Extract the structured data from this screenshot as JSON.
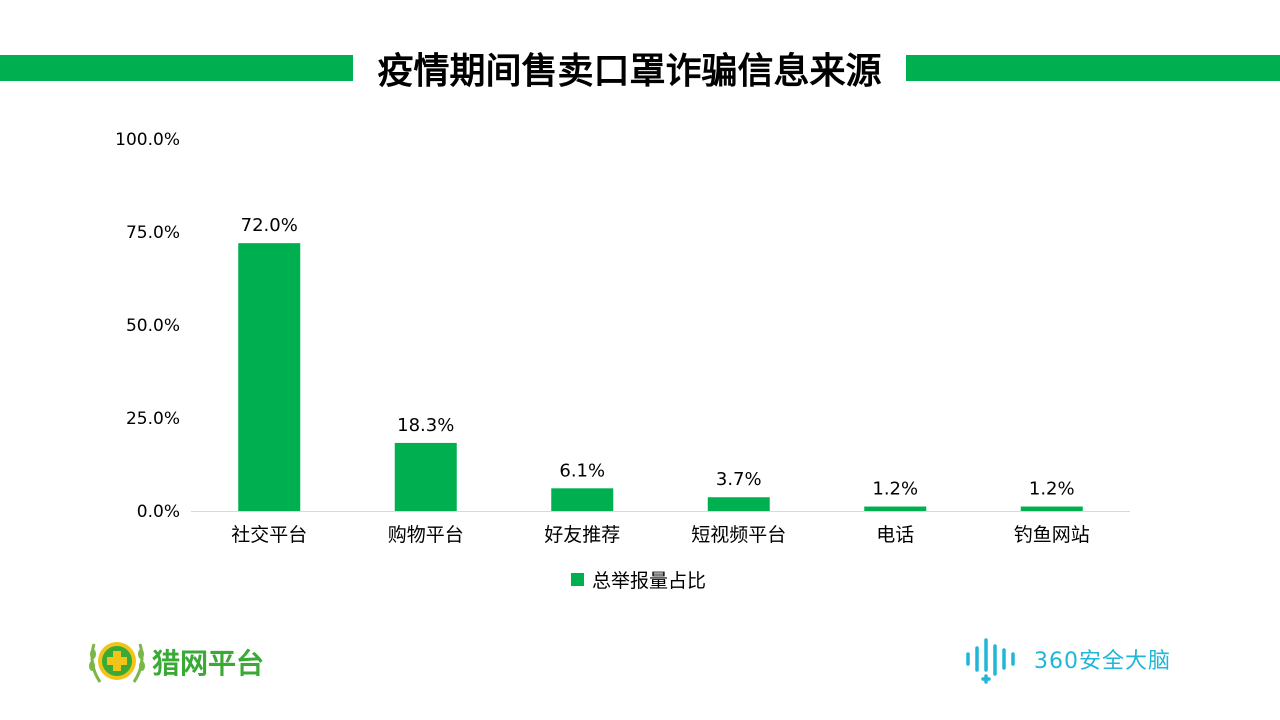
{
  "title": "疫情期间售卖口罩诈骗信息来源",
  "chart_data": {
    "type": "bar",
    "categories": [
      "社交平台",
      "购物平台",
      "好友推荐",
      "短视频平台",
      "电话",
      "钓鱼网站"
    ],
    "series": [
      {
        "name": "总举报量占比",
        "values": [
          72.0,
          18.3,
          6.1,
          3.7,
          1.2,
          1.2
        ]
      }
    ],
    "data_labels": [
      "72.0%",
      "18.3%",
      "6.1%",
      "3.7%",
      "1.2%",
      "1.2%"
    ],
    "ylim": [
      0,
      100
    ],
    "yticks": [
      "0.0%",
      "25.0%",
      "50.0%",
      "75.0%",
      "100.0%"
    ],
    "grid": false,
    "legend": "bottom",
    "bar_color": "#00b050"
  },
  "legend": {
    "label": "总举报量占比"
  },
  "logos": {
    "left": {
      "text": "猎网平台",
      "icon": "shield-plus-icon"
    },
    "right": {
      "text": "360安全大脑",
      "icon": "sound-wave-icon"
    }
  },
  "colors": {
    "accent": "#00b050"
  }
}
